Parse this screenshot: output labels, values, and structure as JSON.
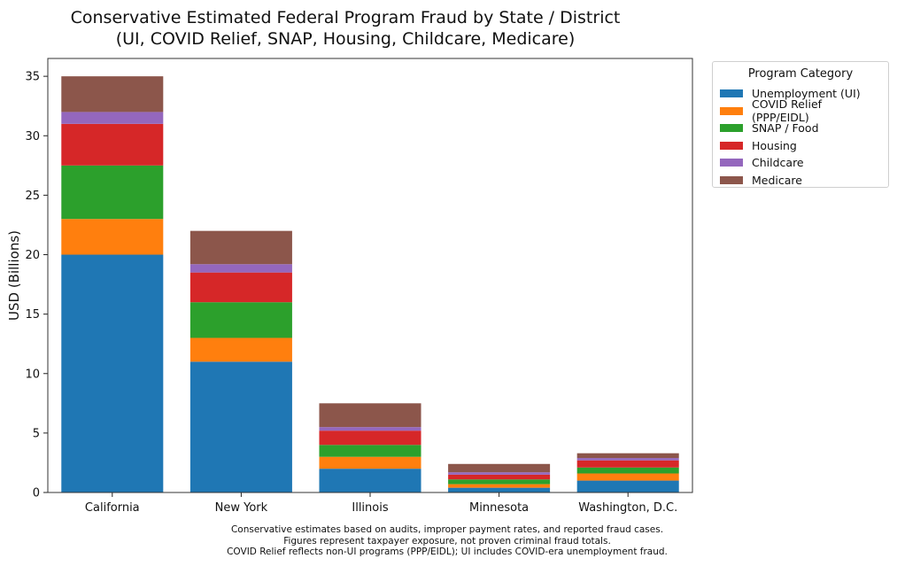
{
  "chart_data": {
    "type": "bar",
    "stacked": true,
    "title": "Conservative Estimated Federal Program Fraud by State / District",
    "subtitle": "(UI, COVID Relief, SNAP, Housing, Childcare, Medicare)",
    "xlabel": "",
    "ylabel": "USD (Billions)",
    "ylim": [
      0,
      36.5
    ],
    "yticks": [
      0,
      5,
      10,
      15,
      20,
      25,
      30,
      35
    ],
    "categories": [
      "California",
      "New York",
      "Illinois",
      "Minnesota",
      "Washington, D.C."
    ],
    "series": [
      {
        "name": "Unemployment (UI)",
        "color": "#1f77b4",
        "values": [
          20,
          11,
          2,
          0.4,
          1.0
        ]
      },
      {
        "name": "COVID Relief (PPP/EIDL)",
        "color": "#ff7f0e",
        "values": [
          3,
          2,
          1,
          0.3,
          0.6
        ]
      },
      {
        "name": "SNAP / Food",
        "color": "#2ca02c",
        "values": [
          4.5,
          3,
          1,
          0.4,
          0.5
        ]
      },
      {
        "name": "Housing",
        "color": "#d62728",
        "values": [
          3.5,
          2.5,
          1.2,
          0.4,
          0.6
        ]
      },
      {
        "name": "Childcare",
        "color": "#9467bd",
        "values": [
          1,
          0.7,
          0.3,
          0.2,
          0.2
        ]
      },
      {
        "name": "Medicare",
        "color": "#8c564b",
        "values": [
          3,
          2.8,
          2,
          0.7,
          0.4
        ]
      }
    ],
    "legend": {
      "title": "Program Category",
      "position": "outside-right"
    },
    "grid": false,
    "footnote": [
      "Conservative estimates based on audits, improper payment rates, and reported fraud cases.",
      "Figures represent taxpayer exposure, not proven criminal fraud totals.",
      "COVID Relief reflects non-UI programs (PPP/EIDL); UI includes COVID-era unemployment fraud."
    ]
  }
}
